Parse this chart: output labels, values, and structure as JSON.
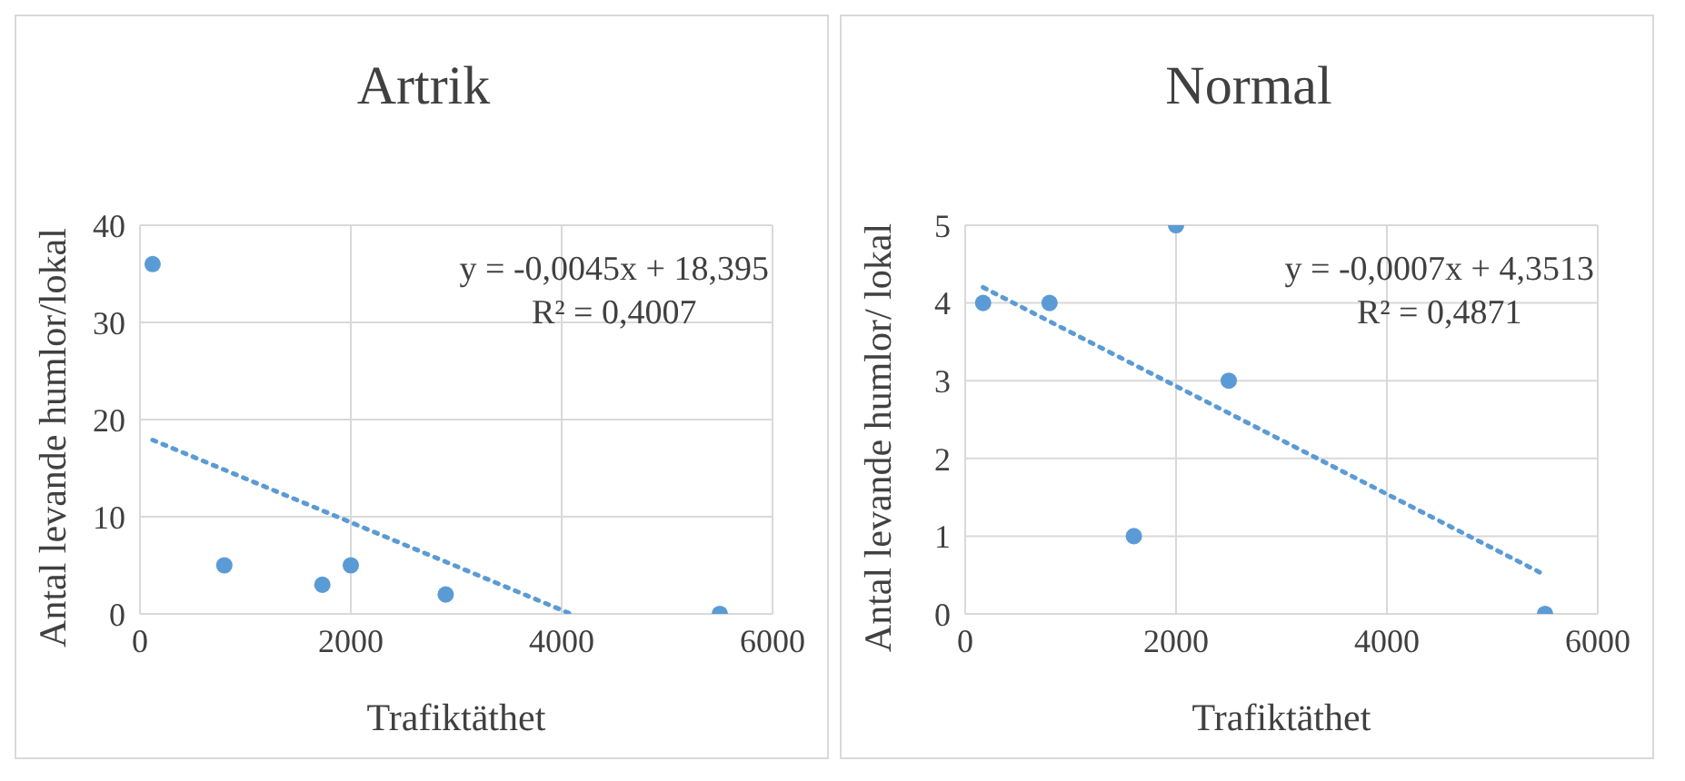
{
  "chart_data": [
    {
      "type": "scatter",
      "title": "Artrik",
      "xlabel": "Trafiktäthet",
      "ylabel": "Antal levande humlor/lokal",
      "xlim": [
        0,
        6000
      ],
      "xticks": [
        0,
        2000,
        4000,
        6000
      ],
      "ylim": [
        0,
        40
      ],
      "yticks": [
        0,
        10,
        20,
        30,
        40
      ],
      "grid": true,
      "series": [
        {
          "marker": "circle",
          "color": "#5b9bd5",
          "x": [
            120,
            800,
            1730,
            2000,
            2900,
            5500
          ],
          "values": [
            36,
            5,
            3,
            5,
            2,
            0
          ]
        },
        {
          "type": "line",
          "marker": "none",
          "color": "#5b9bd5",
          "line_style": "dotted",
          "x": [
            120,
            4088
          ],
          "values": [
            17.9,
            0
          ]
        }
      ],
      "annotations": [
        "y = -0,0045x + 18,395",
        "R² = 0,4007"
      ]
    },
    {
      "type": "scatter",
      "title": "Normal",
      "xlabel": "Trafiktäthet",
      "ylabel": "Antal levande humlor/ lokal",
      "xlim": [
        0,
        6000
      ],
      "xticks": [
        0,
        2000,
        4000,
        6000
      ],
      "ylim": [
        0,
        5
      ],
      "yticks": [
        0,
        1,
        2,
        3,
        4,
        5
      ],
      "grid": true,
      "series": [
        {
          "marker": "circle",
          "color": "#5b9bd5",
          "x": [
            170,
            800,
            1600,
            2000,
            2500,
            5500
          ],
          "values": [
            4,
            4,
            1,
            5,
            3,
            0
          ]
        },
        {
          "type": "line",
          "marker": "none",
          "color": "#5b9bd5",
          "line_style": "dotted",
          "x": [
            170,
            5500
          ],
          "values": [
            4.2,
            0.5
          ]
        }
      ],
      "annotations": [
        "y = -0,0007x + 4,3513",
        "R² = 0,4871"
      ]
    }
  ]
}
